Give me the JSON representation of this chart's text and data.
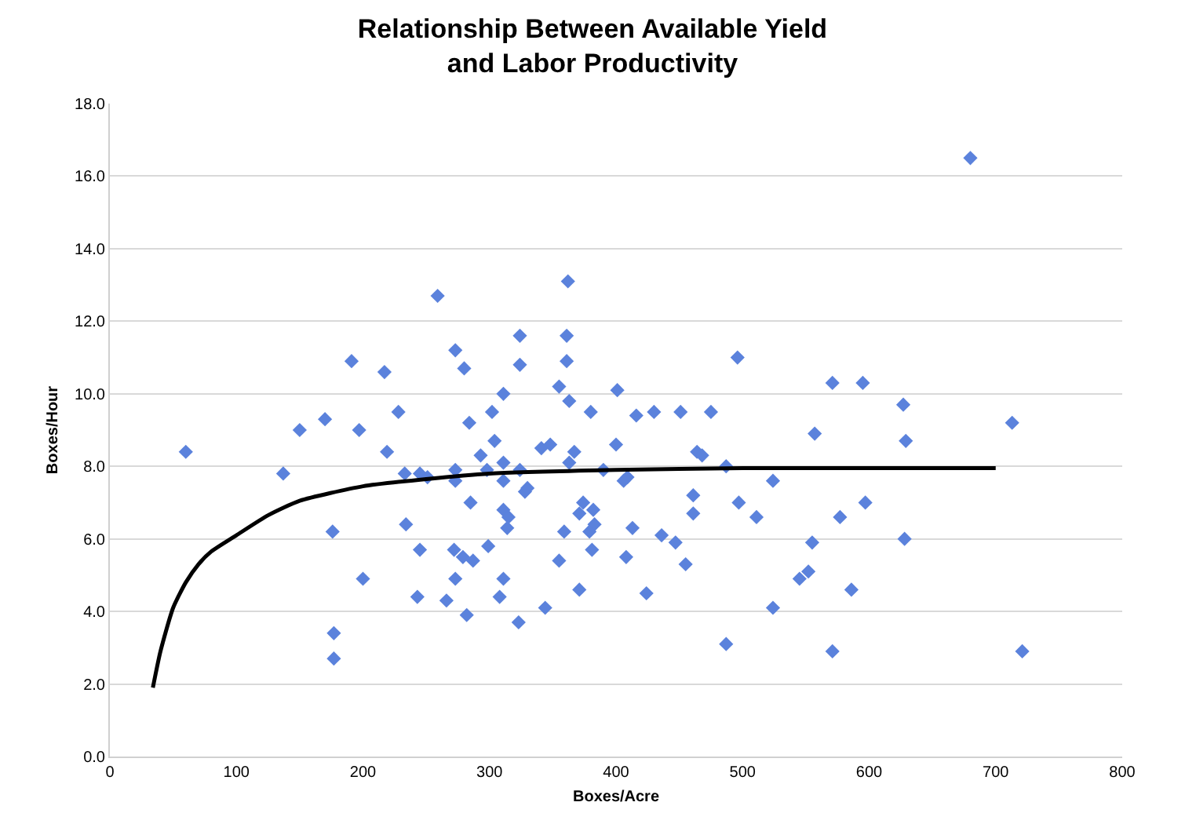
{
  "chart_data": {
    "type": "scatter",
    "title": "Relationship Between Available Yield\nand Labor Productivity",
    "xlabel": "Boxes/Acre",
    "ylabel": "Boxes/Hour",
    "xlim": [
      0,
      800
    ],
    "xticks": [
      0,
      100,
      200,
      300,
      400,
      500,
      600,
      700,
      800
    ],
    "ylim": [
      0,
      18
    ],
    "yticks": [
      {
        "value": 0,
        "label": "0.0"
      },
      {
        "value": 2,
        "label": "2.0"
      },
      {
        "value": 4,
        "label": "4.0"
      },
      {
        "value": 6,
        "label": "6.0"
      },
      {
        "value": 8,
        "label": "8.0"
      },
      {
        "value": 10,
        "label": "10.0"
      },
      {
        "value": 12,
        "label": "12.0"
      },
      {
        "value": 14,
        "label": "14.0"
      },
      {
        "value": 16,
        "label": "16.0"
      },
      {
        "value": 18,
        "label": "18.0"
      }
    ],
    "grid": "y",
    "marker": "diamond",
    "series": [
      {
        "color": "#5b82dc",
        "x": [
          60,
          137,
          150,
          170,
          176,
          177,
          177,
          191,
          197,
          200,
          217,
          219,
          228,
          233,
          234,
          243,
          245,
          245,
          251,
          259,
          266,
          272,
          273,
          273,
          273,
          273,
          279,
          280,
          282,
          284,
          285,
          287,
          293,
          298,
          299,
          302,
          304,
          308,
          311,
          311,
          311,
          311,
          311,
          314,
          315,
          323,
          324,
          324,
          324,
          328,
          330,
          341,
          344,
          348,
          355,
          355,
          359,
          361,
          361,
          363,
          362,
          363,
          367,
          371,
          374,
          371,
          382,
          383,
          379,
          380,
          381,
          401,
          400,
          390,
          409,
          406,
          408,
          413,
          416,
          424,
          430,
          436,
          447,
          451,
          455,
          461,
          461,
          464,
          468,
          475,
          487,
          487,
          497,
          496,
          511,
          524,
          524,
          545,
          552,
          555,
          557,
          571,
          571,
          577,
          586,
          595,
          597,
          627,
          628,
          629,
          680,
          713,
          721
        ],
        "values": [
          8.4,
          7.8,
          9.0,
          9.3,
          6.2,
          3.4,
          2.7,
          10.9,
          9.0,
          4.9,
          10.6,
          8.4,
          9.5,
          7.8,
          6.4,
          4.4,
          7.8,
          5.7,
          7.7,
          12.7,
          4.3,
          5.7,
          7.9,
          7.6,
          4.9,
          11.2,
          5.5,
          10.7,
          3.9,
          9.2,
          7.0,
          5.4,
          8.3,
          7.9,
          5.8,
          9.5,
          8.7,
          4.4,
          8.1,
          7.6,
          6.8,
          4.9,
          10.0,
          6.3,
          6.6,
          3.7,
          7.9,
          11.6,
          10.8,
          7.3,
          7.4,
          8.5,
          4.1,
          8.6,
          5.4,
          10.2,
          6.2,
          11.6,
          10.9,
          9.8,
          13.1,
          8.1,
          8.4,
          4.6,
          7.0,
          6.7,
          6.8,
          6.4,
          6.2,
          9.5,
          5.7,
          10.1,
          8.6,
          7.9,
          7.7,
          7.6,
          5.5,
          6.3,
          9.4,
          4.5,
          9.5,
          6.1,
          5.9,
          9.5,
          5.3,
          7.2,
          6.7,
          8.4,
          8.3,
          9.5,
          8.0,
          3.1,
          7.0,
          11.0,
          6.6,
          7.6,
          4.1,
          4.9,
          5.1,
          5.9,
          8.9,
          10.3,
          2.9,
          6.6,
          4.6,
          10.3,
          7.0,
          9.7,
          6.0,
          8.7,
          16.5,
          9.2,
          2.9
        ]
      },
      {
        "type": "line",
        "color": "#000000",
        "marker": "none",
        "line_style": "solid",
        "x": [
          34,
          40,
          50,
          60,
          70,
          80,
          100,
          125,
          150,
          200,
          250,
          300,
          400,
          500,
          600,
          700
        ],
        "values": [
          1.9,
          2.9,
          4.1,
          4.8,
          5.3,
          5.65,
          6.1,
          6.65,
          7.05,
          7.45,
          7.65,
          7.8,
          7.9,
          7.95,
          7.95,
          7.95
        ]
      }
    ]
  }
}
